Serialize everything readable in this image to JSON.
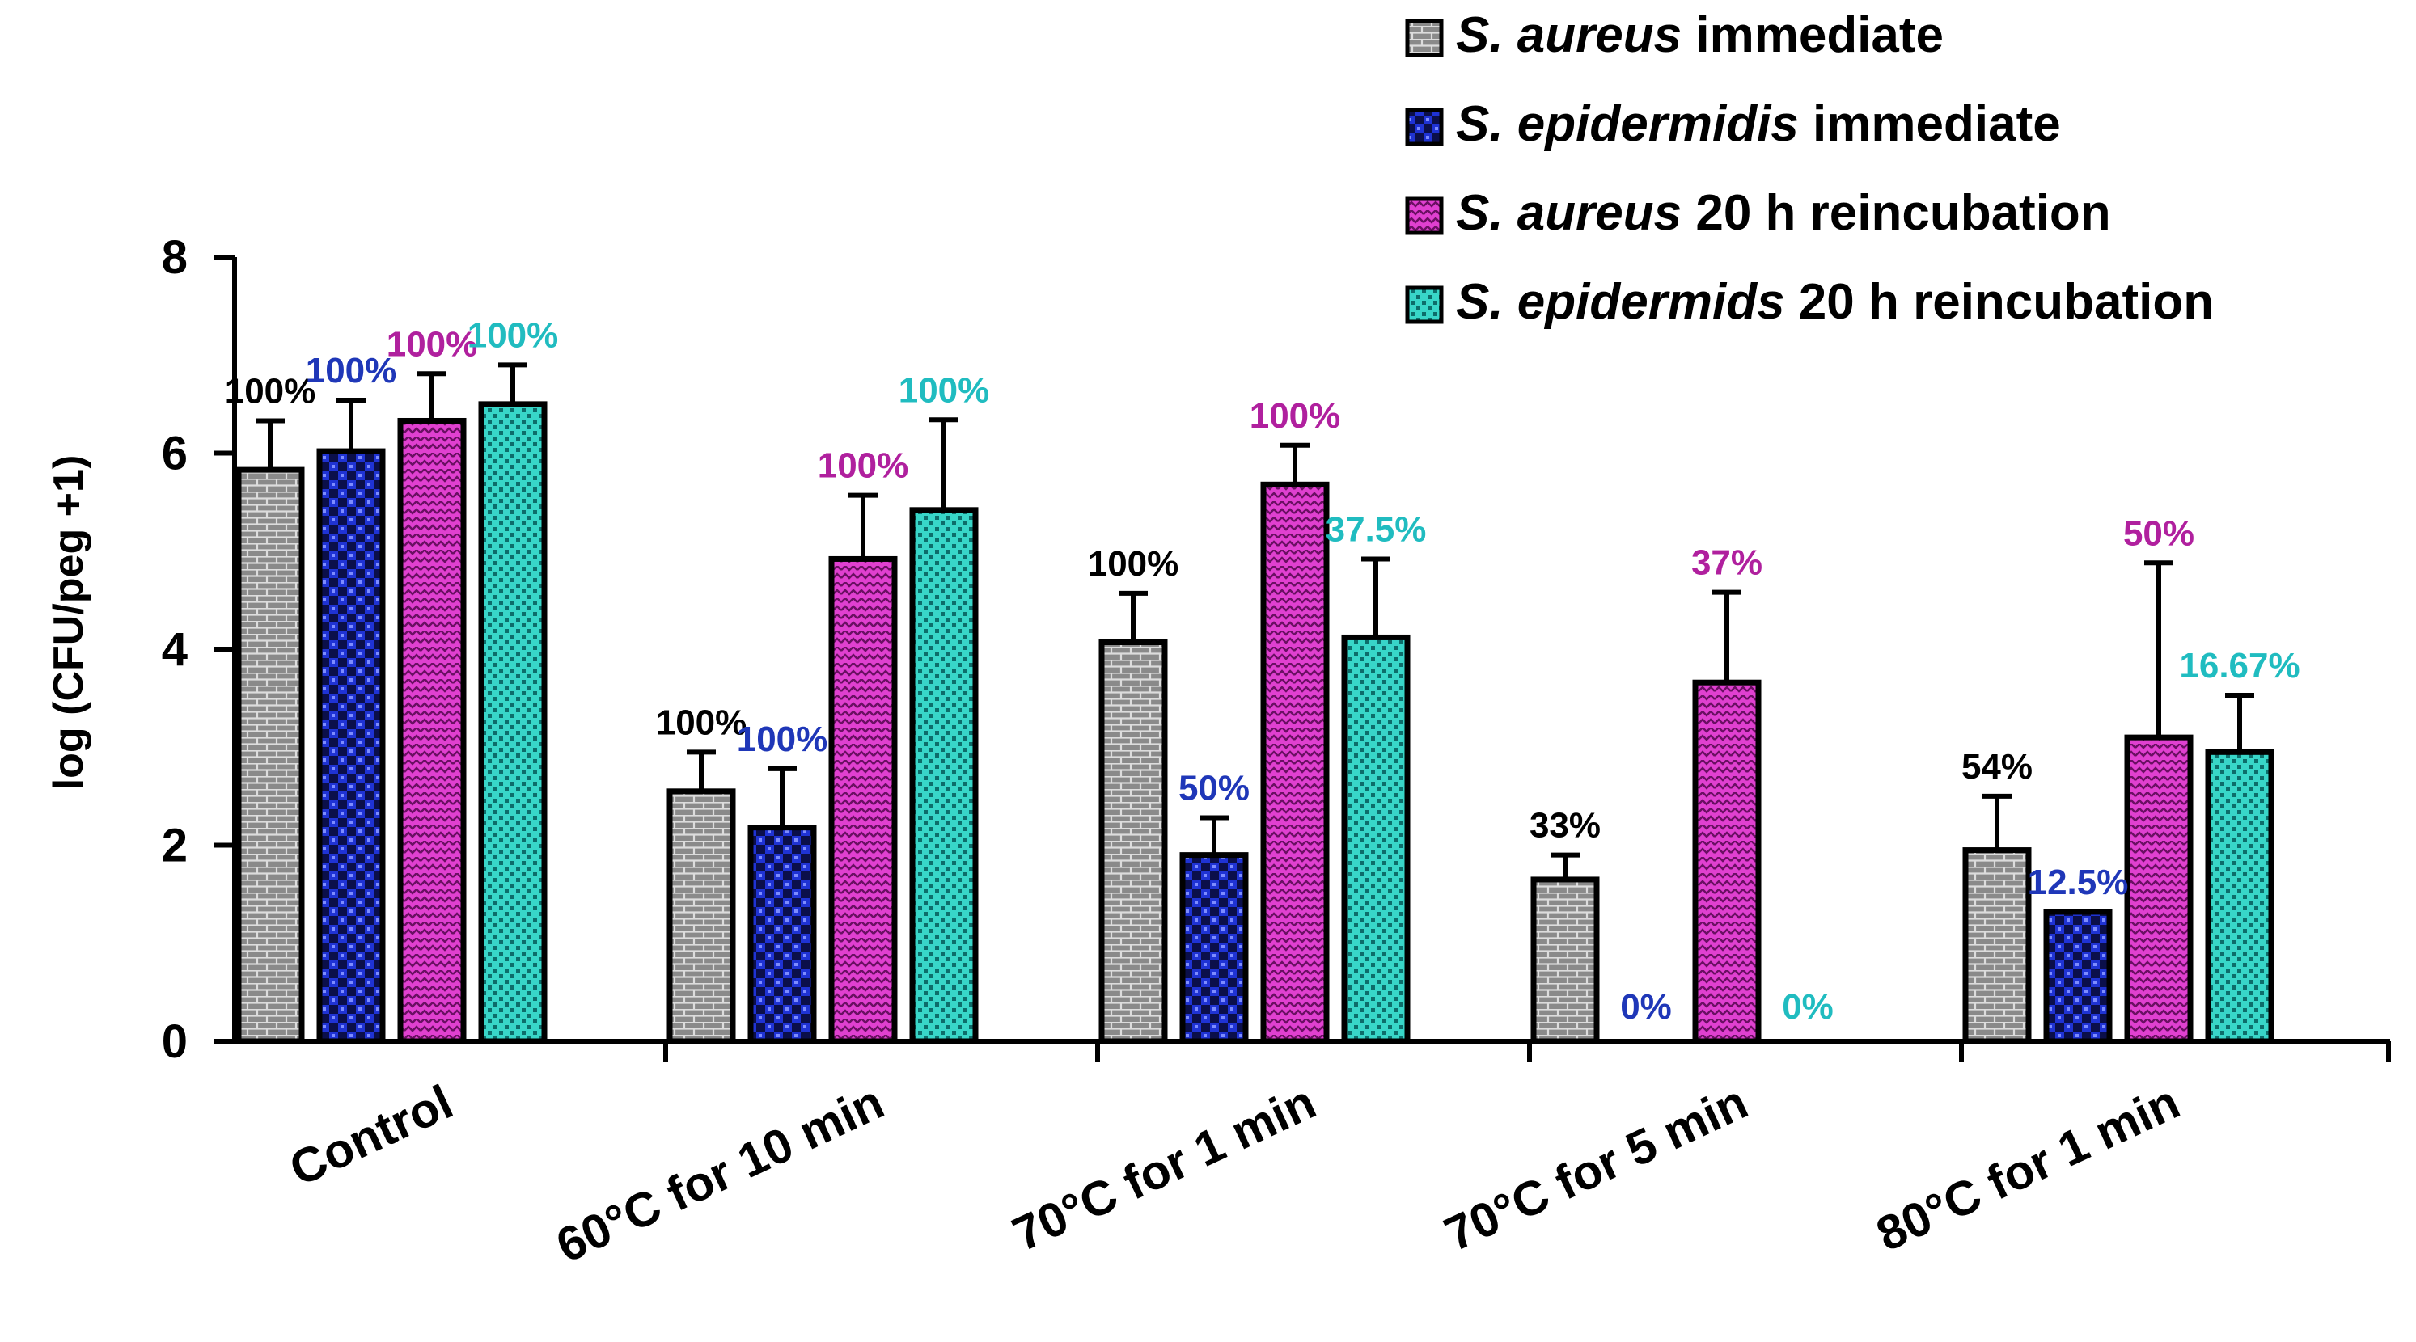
{
  "chart_data": {
    "type": "bar",
    "title": "",
    "xlabel": "",
    "ylabel": "log (CFU/peg +1)",
    "ylim": [
      0,
      8
    ],
    "yticks": [
      "0",
      "2",
      "4",
      "6",
      "8"
    ],
    "ytick_values": [
      0,
      2,
      4,
      6,
      8
    ],
    "categories": [
      "Control",
      "60°C for 10 min",
      "70°C for 1 min",
      "70°C for 5 min",
      "80°C for 1 min"
    ],
    "series": [
      {
        "name": "S. aureus immediate",
        "legend_italic": "S. aureus",
        "legend_rest": " immediate",
        "color": "#808080",
        "label_color": "#000000",
        "pattern": "brick",
        "values": [
          5.83,
          2.55,
          4.07,
          1.65,
          1.95
        ],
        "errors": [
          0.5,
          0.4,
          0.5,
          0.25,
          0.55
        ],
        "labels": [
          "100%",
          "100%",
          "100%",
          "33%",
          "54%"
        ]
      },
      {
        "name": "S. epidermidis immediate",
        "legend_italic": "S. epidermidis",
        "legend_rest": " immediate",
        "color": "#3346d6",
        "label_color": "#1f37b8",
        "pattern": "checker",
        "values": [
          6.02,
          2.18,
          1.9,
          0,
          1.32
        ],
        "errors": [
          0.52,
          0.6,
          0.38,
          0,
          0
        ],
        "labels": [
          "100%",
          "100%",
          "50%",
          "0%",
          "12.5%"
        ]
      },
      {
        "name": "S. aureus 20 h reincubation",
        "legend_italic": "S. aureus",
        "legend_rest": " 20 h reincubation",
        "color": "#d92ecb",
        "label_color": "#b0209e",
        "pattern": "zigzag",
        "values": [
          6.33,
          4.92,
          5.68,
          3.66,
          3.1
        ],
        "errors": [
          0.48,
          0.65,
          0.4,
          0.92,
          1.78
        ],
        "labels": [
          "100%",
          "100%",
          "100%",
          "37%",
          "50%"
        ]
      },
      {
        "name": "S. epidermids 20 h reincubation",
        "legend_italic": "S. epidermids",
        "legend_rest": " 20 h reincubation",
        "color": "#2fd0c4",
        "label_color": "#20bcc0",
        "pattern": "dots",
        "values": [
          6.5,
          5.42,
          4.12,
          0,
          2.95
        ],
        "errors": [
          0.4,
          0.92,
          0.8,
          0,
          0.58
        ],
        "labels": [
          "100%",
          "100%",
          "37.5%",
          "0%",
          "16.67%"
        ]
      }
    ],
    "legend_position": "top-right",
    "grid": false
  }
}
